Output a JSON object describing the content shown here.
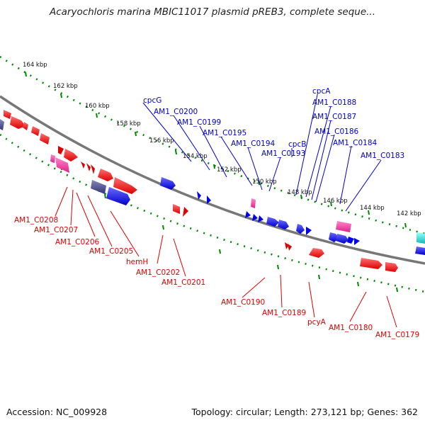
{
  "title": "Acaryochloris marina MBIC11017 plasmid pREB3, complete seque...",
  "footer": {
    "accession": "Accession: NC_009928",
    "topology": "Topology: circular; Length: 273,121 bp; Genes: 362"
  },
  "colors": {
    "forward_gene": "#0000ee",
    "reverse_gene": "#ee0000",
    "rna_pink": "#ee3399",
    "slate": "#444499",
    "cyan": "#22dddd",
    "backbone": "#777777",
    "ticks": "#008800",
    "blue_label": "#0000cc",
    "red_label": "#dd0000"
  },
  "kbp_ticks": [
    "164 kbp",
    "162 kbp",
    "160 kbp",
    "158 kbp",
    "156 kbp",
    "154 kbp",
    "152 kbp",
    "150 kbp",
    "148 kbp",
    "146 kbp",
    "144 kbp",
    "142 kbp"
  ],
  "blue_labels": [
    "cpcG",
    "AM1_C0200",
    "AM1_C0199",
    "AM1_C0195",
    "AM1_C0194",
    "cpcB",
    "AM1_C0193",
    "cpcA",
    "AM1_C0188",
    "AM1_C0187",
    "AM1_C0186",
    "AM1_C0184",
    "AM1_C0183"
  ],
  "red_labels": [
    "AM1_C0208",
    "AM1_C0207",
    "AM1_C0206",
    "AM1_C0205",
    "hemH",
    "AM1_C0202",
    "AM1_C0201",
    "AM1_C0190",
    "AM1_C0189",
    "pcyA",
    "AM1_C0180",
    "AM1_C0179"
  ]
}
